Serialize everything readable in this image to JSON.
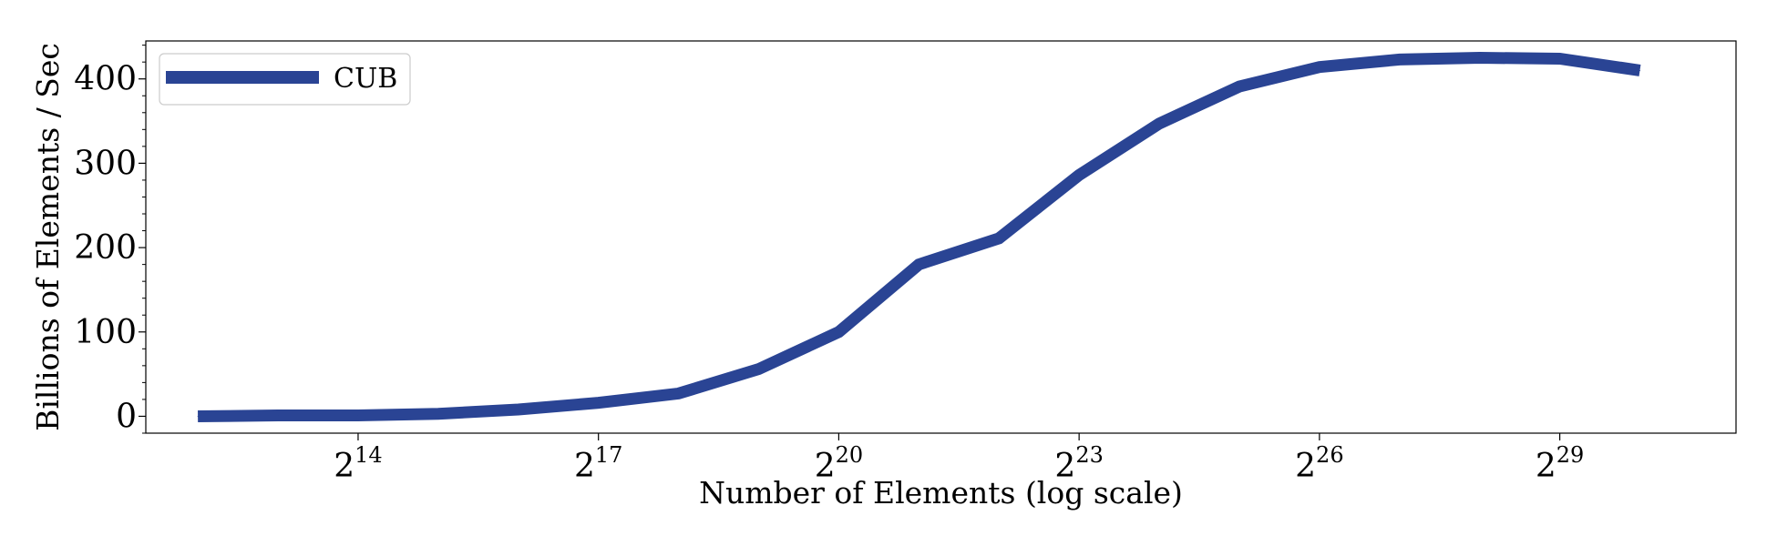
{
  "chart_data": {
    "type": "line",
    "title": "",
    "xlabel": "Number of Elements (log scale)",
    "ylabel": "Billions of Elements / Sec",
    "x_scale": "log2",
    "x_tick_base": "2",
    "x_tick_exponents": [
      "14",
      "17",
      "20",
      "23",
      "26",
      "29"
    ],
    "y_ticks": [
      "0",
      "100",
      "200",
      "300",
      "400"
    ],
    "xlim_exponent": [
      11.35,
      31.2
    ],
    "ylim": [
      -20,
      445
    ],
    "grid": false,
    "legend_position": "top-left",
    "series": [
      {
        "name": "CUB",
        "color": "#2a4494",
        "x_exponents": [
          12,
          13,
          14,
          15,
          16,
          17,
          18,
          19,
          20,
          21,
          22,
          23,
          24,
          25,
          26,
          27,
          28,
          29,
          30
        ],
        "values": [
          0,
          1,
          1,
          3,
          8,
          16,
          27,
          56,
          100,
          180,
          211,
          286,
          347,
          391,
          414,
          423,
          425,
          424,
          410
        ]
      }
    ]
  }
}
